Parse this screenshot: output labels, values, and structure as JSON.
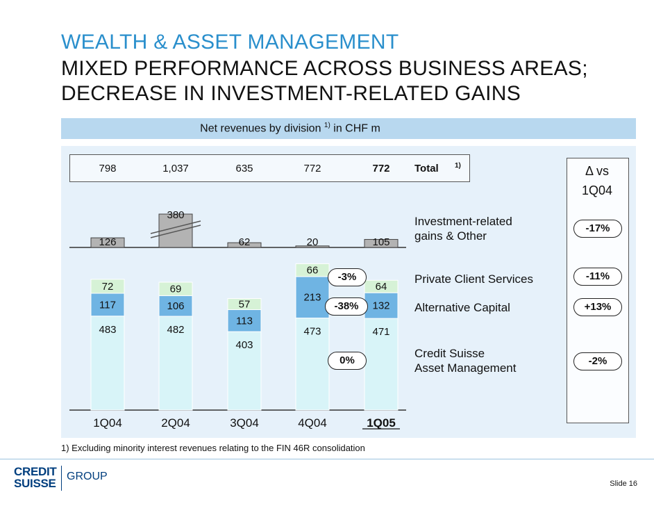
{
  "header": {
    "line1": "WEALTH & ASSET MANAGEMENT",
    "line2": "MIXED PERFORMANCE ACROSS BUSINESS AREAS;",
    "line3": "DECREASE IN INVESTMENT-RELATED GAINS"
  },
  "banner": {
    "text": "Net revenues by division",
    "sup": "1)",
    "unit": "in CHF m"
  },
  "chart_data": {
    "type": "bar",
    "title": "Net revenues by division 1) in CHF m",
    "categories": [
      "1Q04",
      "2Q04",
      "3Q04",
      "4Q04",
      "1Q05"
    ],
    "highlight_category": "1Q05",
    "totals": [
      "798",
      "1,037",
      "635",
      "772",
      "772"
    ],
    "total_label": "Total",
    "total_sup": "1)",
    "series": [
      {
        "name": "Credit Suisse Asset Management",
        "values": [
          483,
          482,
          403,
          473,
          471
        ],
        "color": "#d8f4f8"
      },
      {
        "name": "Alternative Capital",
        "values": [
          117,
          106,
          113,
          213,
          132
        ],
        "color": "#6fb4e3"
      },
      {
        "name": "Private Client Services",
        "values": [
          72,
          69,
          57,
          66,
          64
        ],
        "color": "#d6f2d6"
      },
      {
        "name": "Investment-related gains & Other",
        "values": [
          126,
          380,
          62,
          20,
          105
        ],
        "color": "#b3b3b3"
      }
    ],
    "broken_bar_category": "2Q04",
    "inline_deltas": [
      {
        "series": "Private Client Services",
        "text": "-3%"
      },
      {
        "series": "Alternative Capital",
        "text": "-38%"
      },
      {
        "series": "Credit Suisse Asset Management",
        "text": "0%"
      }
    ],
    "labels": {
      "inv_line1": "Investment-related",
      "inv_line2": "gains & Other",
      "pcs": "Private Client Services",
      "ac": "Alternative Capital",
      "csam_line1": "Credit Suisse",
      "csam_line2": "Asset Management"
    },
    "delta_header": {
      "symbol": "Δ",
      "word": "vs",
      "period": "1Q04"
    },
    "deltas_vs_1q04": {
      "investment_related": "-17%",
      "private_client_services": "-11%",
      "alternative_capital": "+13%",
      "csam": "-2%"
    }
  },
  "footnote": "1)  Excluding minority interest revenues relating to the FIN 46R consolidation",
  "footer": {
    "brand_line1": "CREDIT",
    "brand_line2": "SUISSE",
    "group": "GROUP",
    "slide": "Slide 16"
  }
}
